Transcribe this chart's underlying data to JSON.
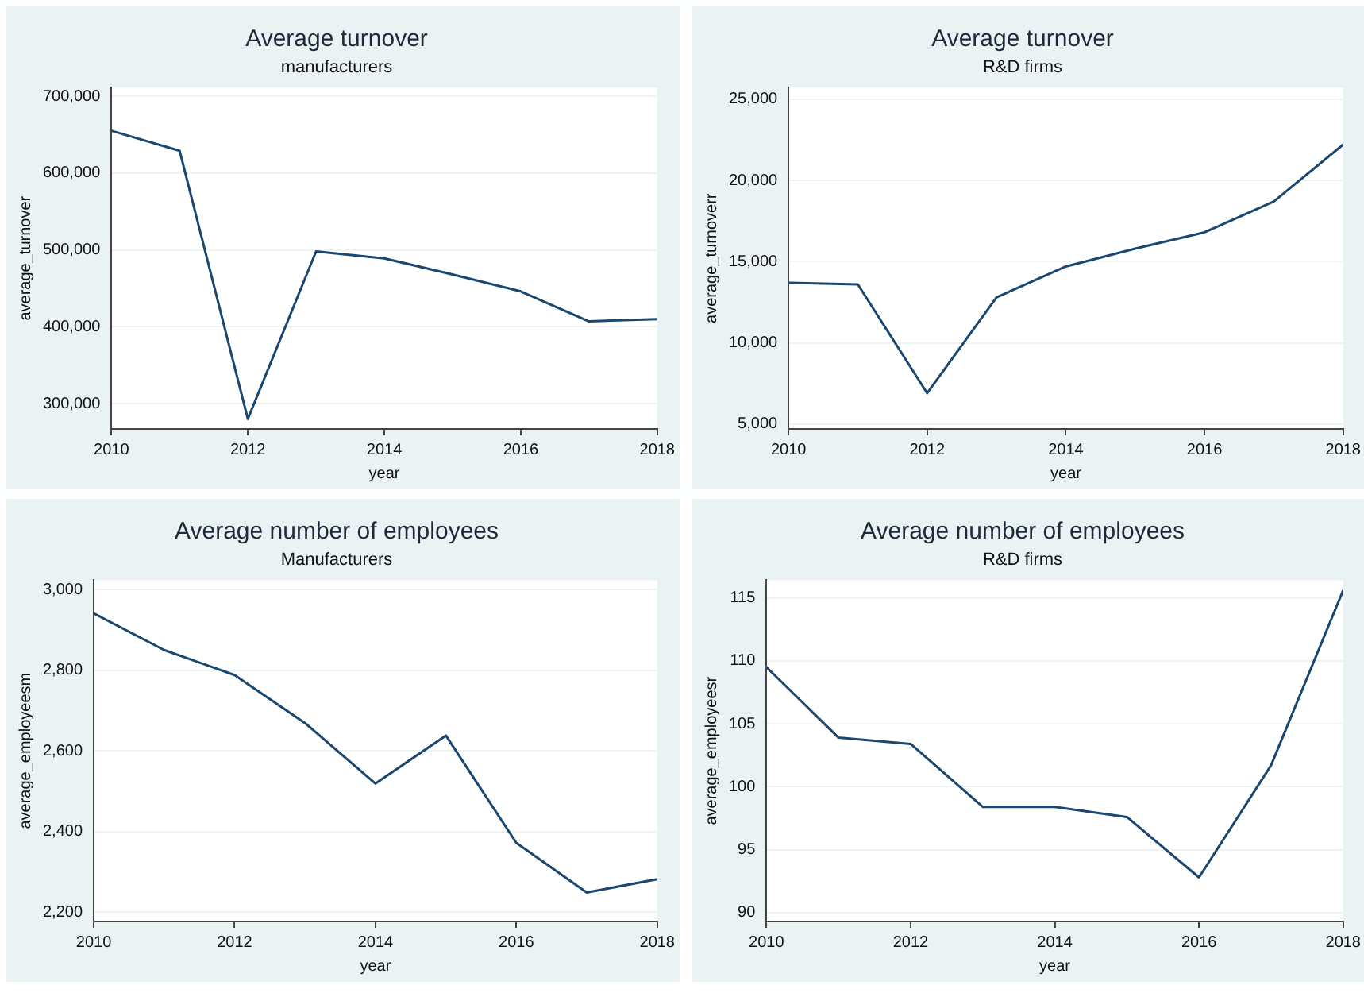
{
  "chart_data": [
    {
      "type": "line",
      "title": "Average turnover",
      "subtitle": "manufacturers",
      "xlabel": "year",
      "ylabel": "average_turnover",
      "x": [
        2010,
        2011,
        2012,
        2013,
        2014,
        2015,
        2016,
        2017,
        2018
      ],
      "series": [
        {
          "color": "#1a476f",
          "values": [
            655000,
            629000,
            280000,
            498000,
            489000,
            468000,
            446000,
            407000,
            410000
          ]
        }
      ],
      "xlim": [
        2010,
        2018
      ],
      "xticks": [
        2010,
        2012,
        2014,
        2016,
        2018
      ],
      "ylim": [
        267000,
        711000
      ],
      "yticks": [
        {
          "value": 300000,
          "label": "300,000"
        },
        {
          "value": 400000,
          "label": "400,000"
        },
        {
          "value": 500000,
          "label": "500,000"
        },
        {
          "value": 600000,
          "label": "600,000"
        },
        {
          "value": 700000,
          "label": "700,000"
        }
      ],
      "grid": "y",
      "legend": false
    },
    {
      "type": "line",
      "title": "Average turnover",
      "subtitle": "R&D firms",
      "xlabel": "year",
      "ylabel": "average_turnoverr",
      "x": [
        2010,
        2011,
        2012,
        2013,
        2014,
        2015,
        2016,
        2017,
        2018
      ],
      "series": [
        {
          "color": "#1a476f",
          "values": [
            13700,
            13600,
            6900,
            12800,
            14700,
            15800,
            16800,
            18700,
            22200
          ]
        }
      ],
      "xlim": [
        2010,
        2018
      ],
      "xticks": [
        2010,
        2012,
        2014,
        2016,
        2018
      ],
      "ylim": [
        4700,
        25700
      ],
      "yticks": [
        {
          "value": 5000,
          "label": "5,000"
        },
        {
          "value": 10000,
          "label": "10,000"
        },
        {
          "value": 15000,
          "label": "15,000"
        },
        {
          "value": 20000,
          "label": "20,000"
        },
        {
          "value": 25000,
          "label": "25,000"
        }
      ],
      "grid": "y",
      "legend": false
    },
    {
      "type": "line",
      "title": "Average number of employees",
      "subtitle": "Manufacturers",
      "xlabel": "year",
      "ylabel": "average_employeesm",
      "x": [
        2010,
        2011,
        2012,
        2013,
        2014,
        2015,
        2016,
        2017,
        2018
      ],
      "series": [
        {
          "color": "#1a476f",
          "values": [
            2941,
            2850,
            2788,
            2669,
            2519,
            2638,
            2372,
            2249,
            2282
          ]
        }
      ],
      "xlim": [
        2010,
        2018
      ],
      "xticks": [
        2010,
        2012,
        2014,
        2016,
        2018
      ],
      "ylim": [
        2177,
        3023
      ],
      "yticks": [
        {
          "value": 2200,
          "label": "2,200"
        },
        {
          "value": 2400,
          "label": "2,400"
        },
        {
          "value": 2600,
          "label": "2,600"
        },
        {
          "value": 2800,
          "label": "2,800"
        },
        {
          "value": 3000,
          "label": "3,000"
        }
      ],
      "grid": "y",
      "legend": false
    },
    {
      "type": "line",
      "title": "Average number of employees",
      "subtitle": "R&D firms",
      "xlabel": "year",
      "ylabel": "average_employeesr",
      "x": [
        2010,
        2011,
        2012,
        2013,
        2014,
        2015,
        2016,
        2017,
        2018
      ],
      "series": [
        {
          "color": "#1a476f",
          "values": [
            109.5,
            103.9,
            103.4,
            98.4,
            98.4,
            97.6,
            92.8,
            101.7,
            115.6
          ]
        }
      ],
      "xlim": [
        2010,
        2018
      ],
      "xticks": [
        2010,
        2012,
        2014,
        2016,
        2018
      ],
      "ylim": [
        89.3,
        116.4
      ],
      "yticks": [
        90,
        95,
        100,
        105,
        110,
        115
      ],
      "grid": "y",
      "legend": false
    }
  ]
}
